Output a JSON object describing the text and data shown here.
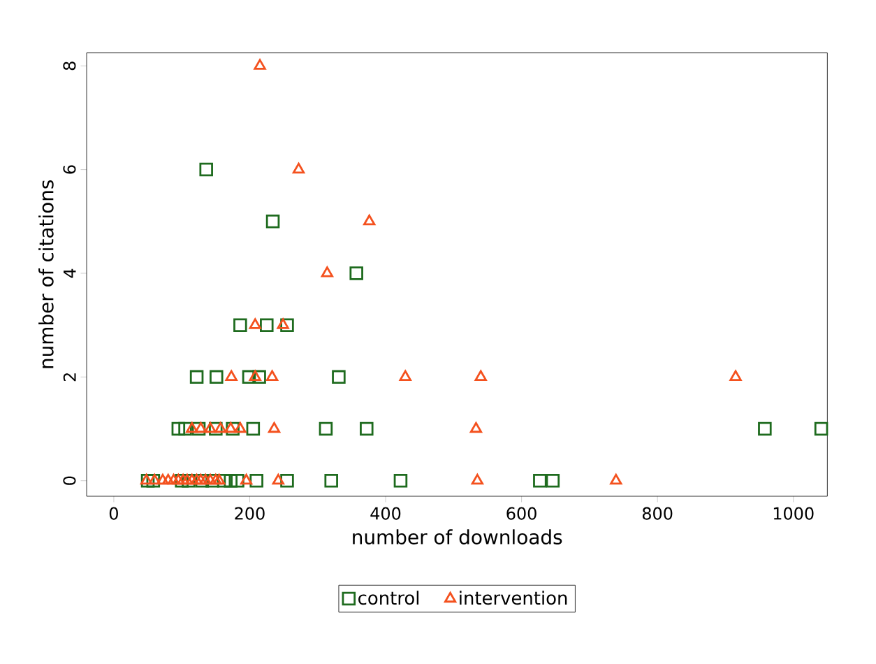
{
  "chart_data": {
    "type": "scatter",
    "xlabel": "number of downloads",
    "ylabel": "number of citations",
    "xlim": [
      -40,
      1050
    ],
    "ylim": [
      -0.3,
      8.25
    ],
    "xticks": [
      0,
      200,
      400,
      600,
      800,
      1000
    ],
    "yticks": [
      0,
      2,
      4,
      6,
      8
    ],
    "grid": false,
    "legend": "bottom",
    "series": [
      {
        "name": "control",
        "color": "#1e6b1e",
        "marker": "square",
        "x": [
          136,
          234,
          357,
          186,
          225,
          255,
          122,
          151,
          199,
          214,
          331,
          95,
          105,
          125,
          150,
          175,
          205,
          312,
          372,
          958,
          1041,
          50,
          58,
          100,
          110,
          130,
          145,
          162,
          172,
          182,
          210,
          255,
          320,
          422,
          627,
          646
        ],
        "values": [
          6,
          5,
          4,
          3,
          3,
          3,
          2,
          2,
          2,
          2,
          2,
          1,
          1,
          1,
          1,
          1,
          1,
          1,
          1,
          1,
          1,
          0,
          0,
          0,
          0,
          0,
          0,
          0,
          0,
          0,
          0,
          0,
          0,
          0,
          0,
          0
        ]
      },
      {
        "name": "intervention",
        "color": "#f4511e",
        "marker": "triangle",
        "x": [
          215,
          272,
          376,
          314,
          208,
          249,
          173,
          208,
          233,
          429,
          540,
          915,
          115,
          128,
          142,
          157,
          172,
          186,
          236,
          533,
          48,
          60,
          72,
          80,
          88,
          95,
          102,
          108,
          115,
          122,
          128,
          135,
          142,
          150,
          155,
          195,
          242,
          535,
          739
        ],
        "values": [
          8,
          6,
          5,
          4,
          3,
          3,
          2,
          2,
          2,
          2,
          2,
          2,
          1,
          1,
          1,
          1,
          1,
          1,
          1,
          1,
          0,
          0,
          0,
          0,
          0,
          0,
          0,
          0,
          0,
          0,
          0,
          0,
          0,
          0,
          0,
          0,
          0,
          0,
          0
        ]
      }
    ]
  }
}
